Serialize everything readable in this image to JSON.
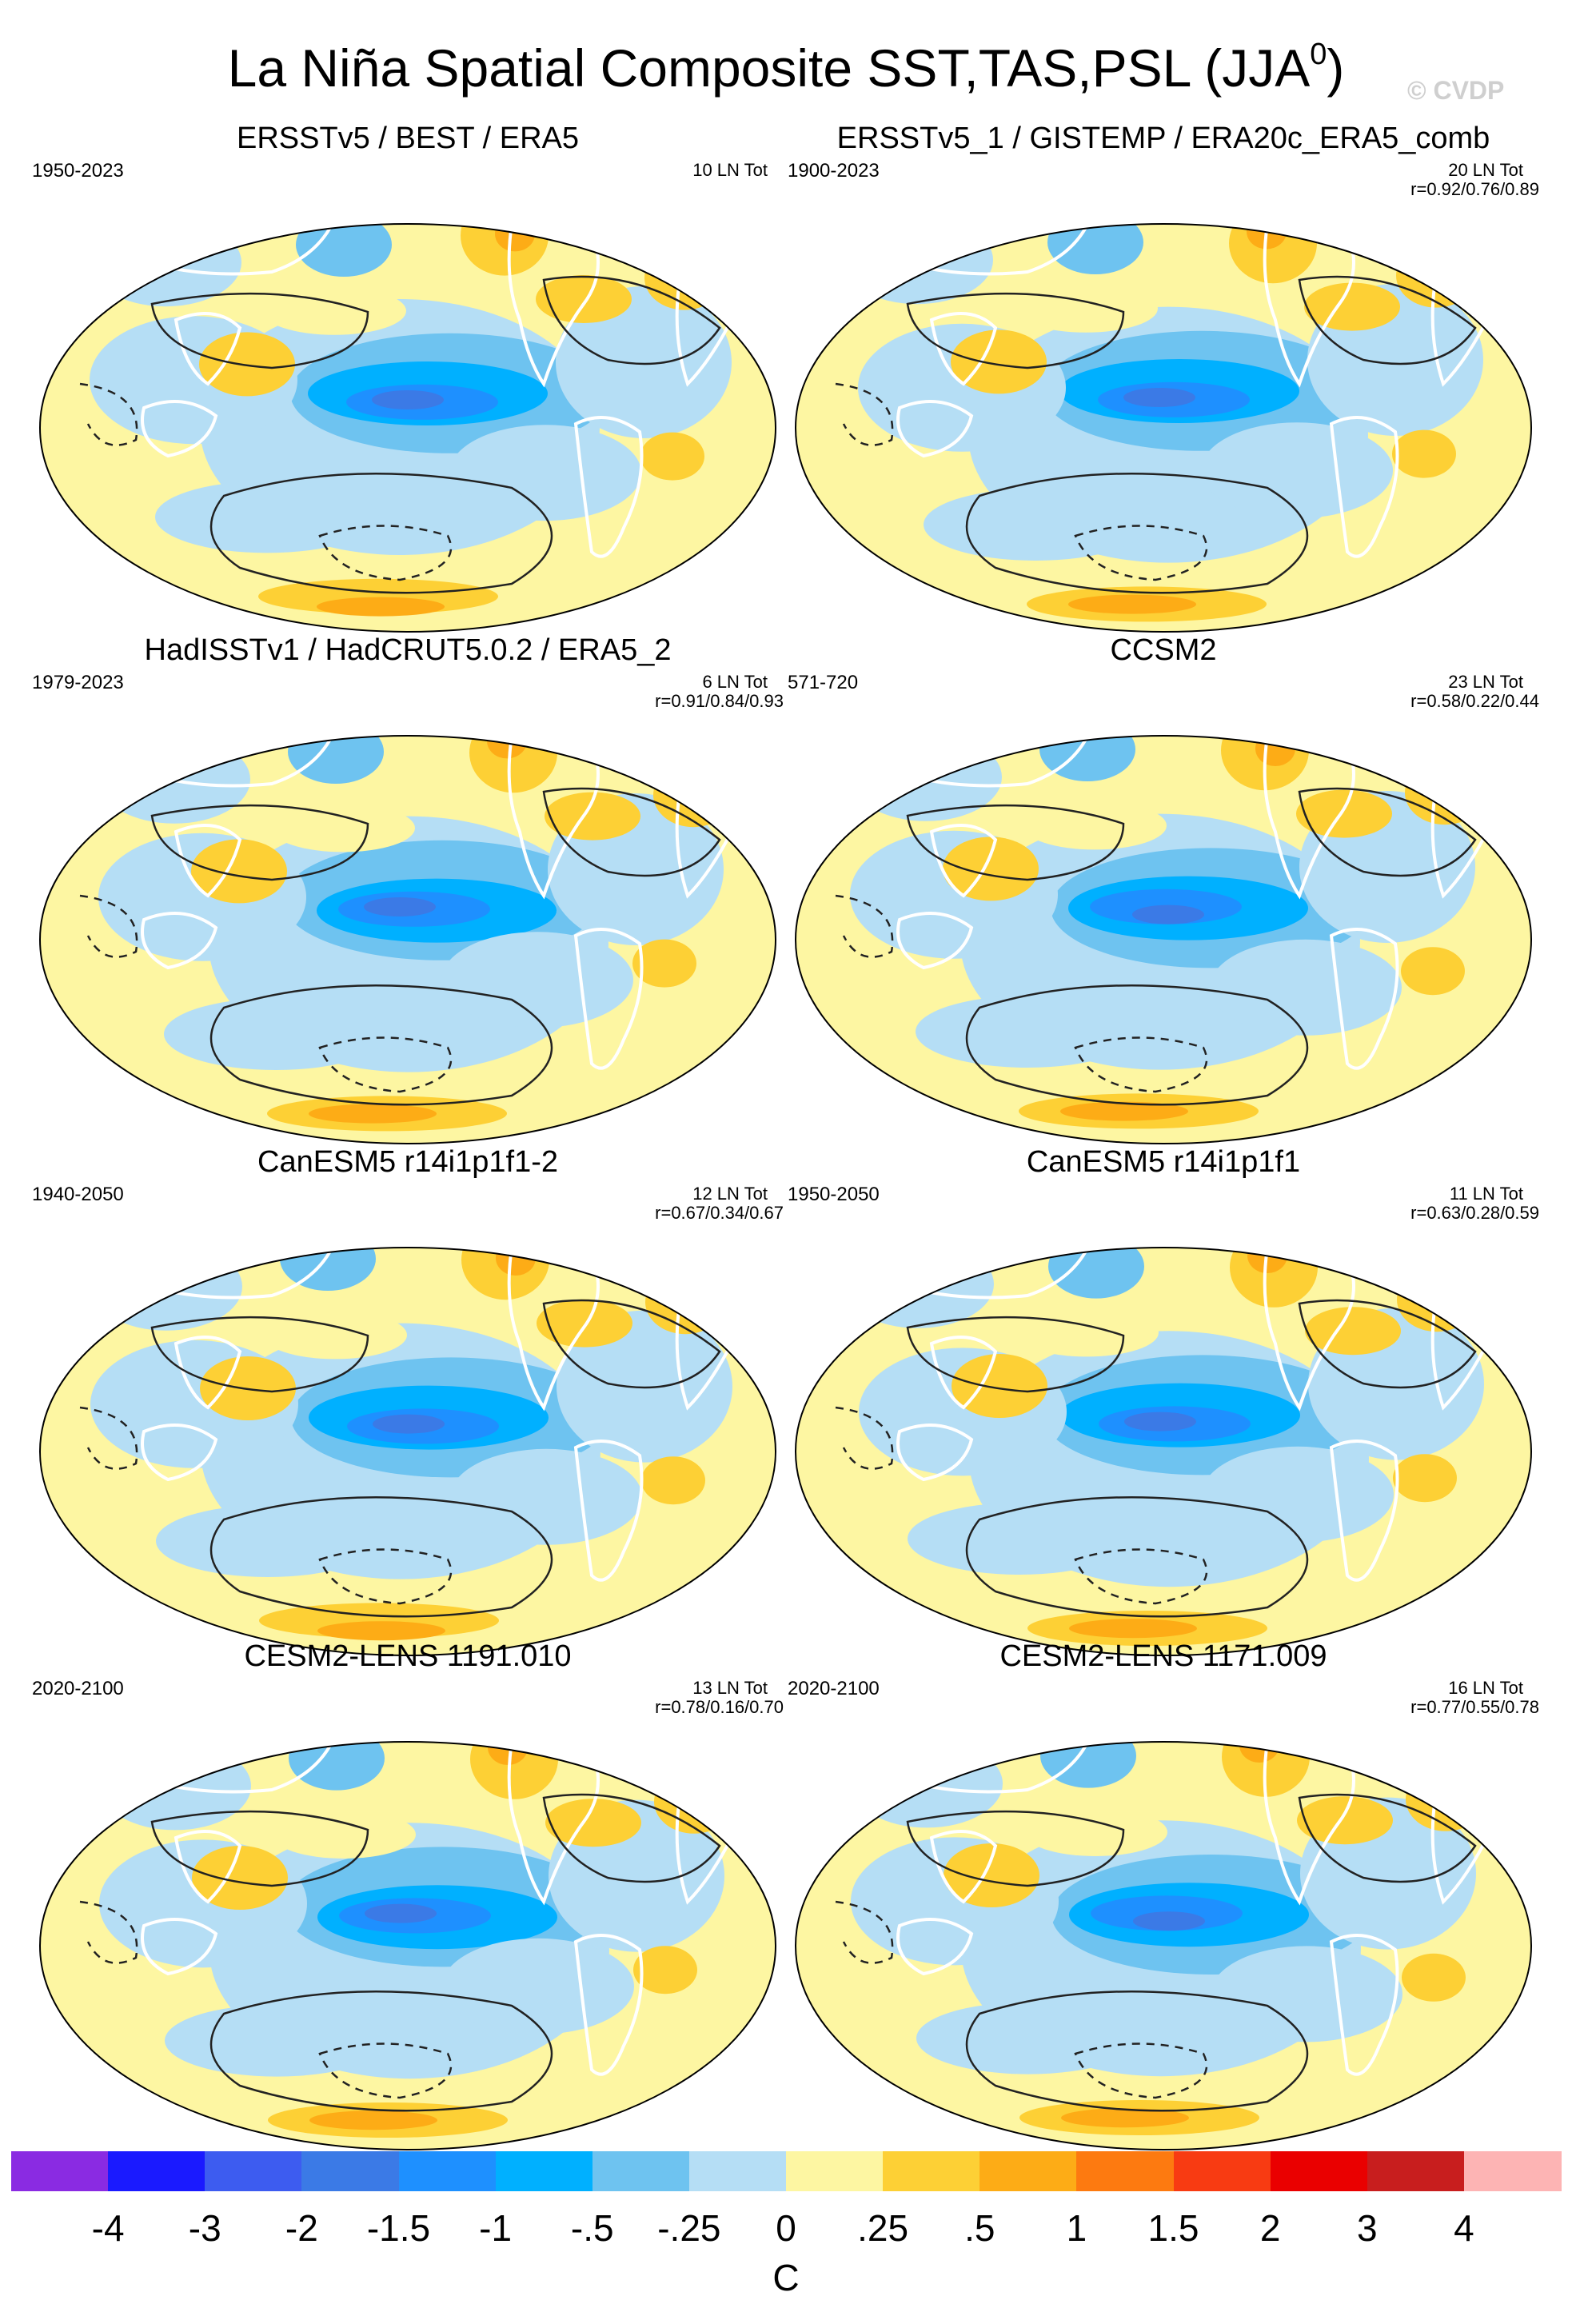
{
  "title": {
    "main": "La Niña Spatial Composite SST,TAS,PSL (JJA",
    "superscript": "0",
    "close": ")"
  },
  "watermark": "© CVDP",
  "panels": [
    {
      "title": "ERSSTv5 / BEST / ERA5",
      "period": "1950-2023",
      "count": "10 LN Tot",
      "corr": ""
    },
    {
      "title": "ERSSTv5_1 / GISTEMP / ERA20c_ERA5_comb",
      "period": "1900-2023",
      "count": "20 LN Tot",
      "corr": "r=0.92/0.76/0.89"
    },
    {
      "title": "HadISSTv1 / HadCRUT5.0.2 / ERA5_2",
      "period": "1979-2023",
      "count": "6 LN Tot",
      "corr": "r=0.91/0.84/0.93"
    },
    {
      "title": "CCSM2",
      "period": "571-720",
      "count": "23 LN Tot",
      "corr": "r=0.58/0.22/0.44"
    },
    {
      "title": "CanESM5 r14i1p1f1-2",
      "period": "1940-2050",
      "count": "12 LN Tot",
      "corr": "r=0.67/0.34/0.67"
    },
    {
      "title": "CanESM5 r14i1p1f1",
      "period": "1950-2050",
      "count": "11 LN Tot",
      "corr": "r=0.63/0.28/0.59"
    },
    {
      "title": "CESM2-LENS 1191.010",
      "period": "2020-2100",
      "count": "13 LN Tot",
      "corr": "r=0.78/0.16/0.70"
    },
    {
      "title": "CESM2-LENS 1171.009",
      "period": "2020-2100",
      "count": "16 LN Tot",
      "corr": "r=0.77/0.55/0.78"
    }
  ],
  "colorbar": {
    "unit": "C",
    "ticks": [
      "-4",
      "-3",
      "-2",
      "-1.5",
      "-1",
      "-.5",
      "-.25",
      "0",
      ".25",
      ".5",
      "1",
      "1.5",
      "2",
      "3",
      "4"
    ],
    "colors": [
      "#8a2be2",
      "#1a1aff",
      "#3d5cf0",
      "#3b7ae6",
      "#1e90ff",
      "#00b0ff",
      "#6ec3f0",
      "#b5def5",
      "#fdf6a2",
      "#fdd035",
      "#fdac16",
      "#fd7a10",
      "#f83b12",
      "#ea0000",
      "#c81e1e",
      "#fdb4b4"
    ]
  }
}
